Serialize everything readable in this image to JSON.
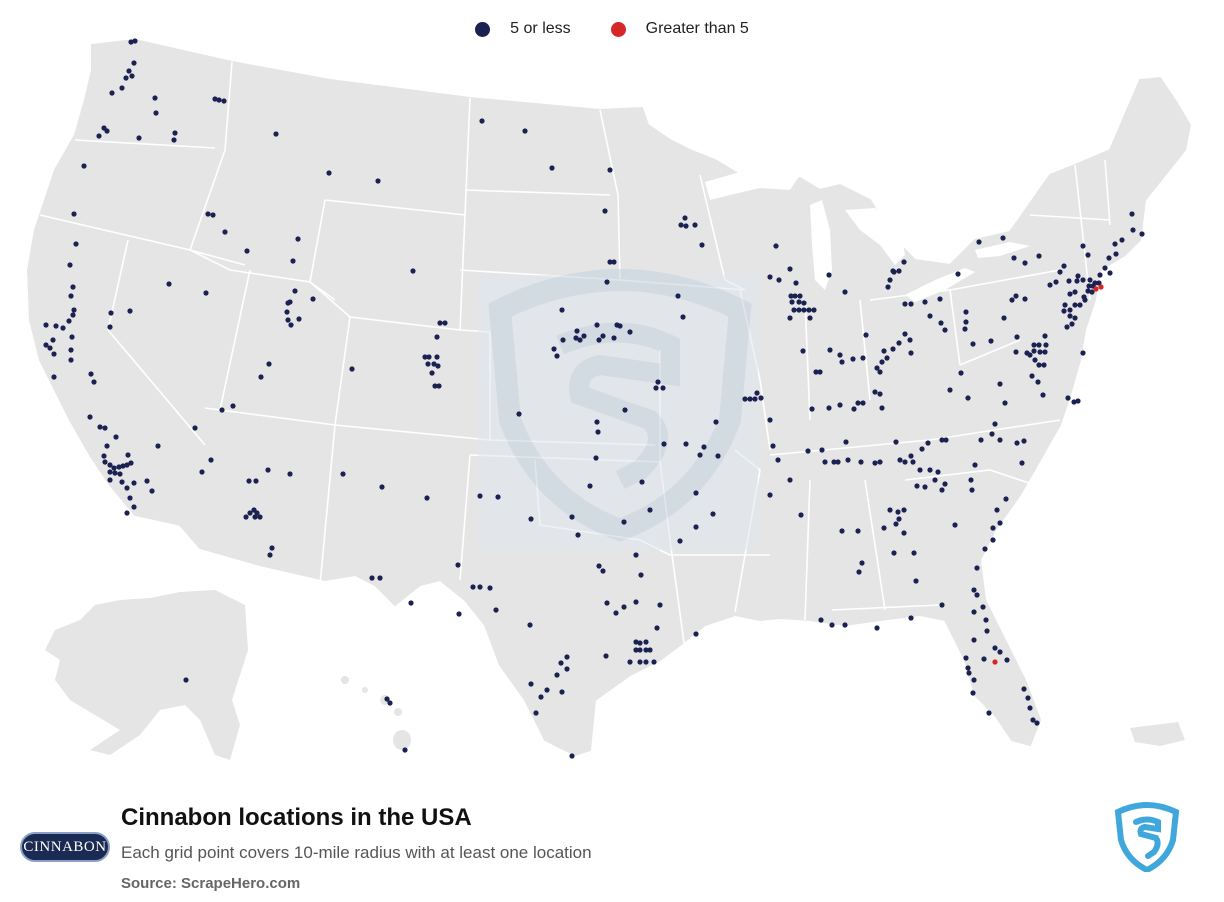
{
  "legend": {
    "items": [
      {
        "label": "5 or less",
        "color": "#1b2150"
      },
      {
        "label": "Greater than 5",
        "color": "#d62728"
      }
    ]
  },
  "footer": {
    "title": "Cinnabon locations in the USA",
    "subtitle": "Each grid point covers 10-mile radius with at least one location",
    "source": "Source: ScrapeHero.com",
    "brand_logo_text": "CINNABON"
  },
  "colors": {
    "land": "#e5e5e5",
    "state_border": "#ffffff",
    "dot_low": "#1b2150",
    "dot_high": "#d62728",
    "watermark": "#cfdbe6",
    "logo_blue": "#3fa7dc"
  },
  "icons": {
    "brand": "scrapehero-shield-icon",
    "watermark": "scrapehero-shield-watermark-icon"
  }
}
